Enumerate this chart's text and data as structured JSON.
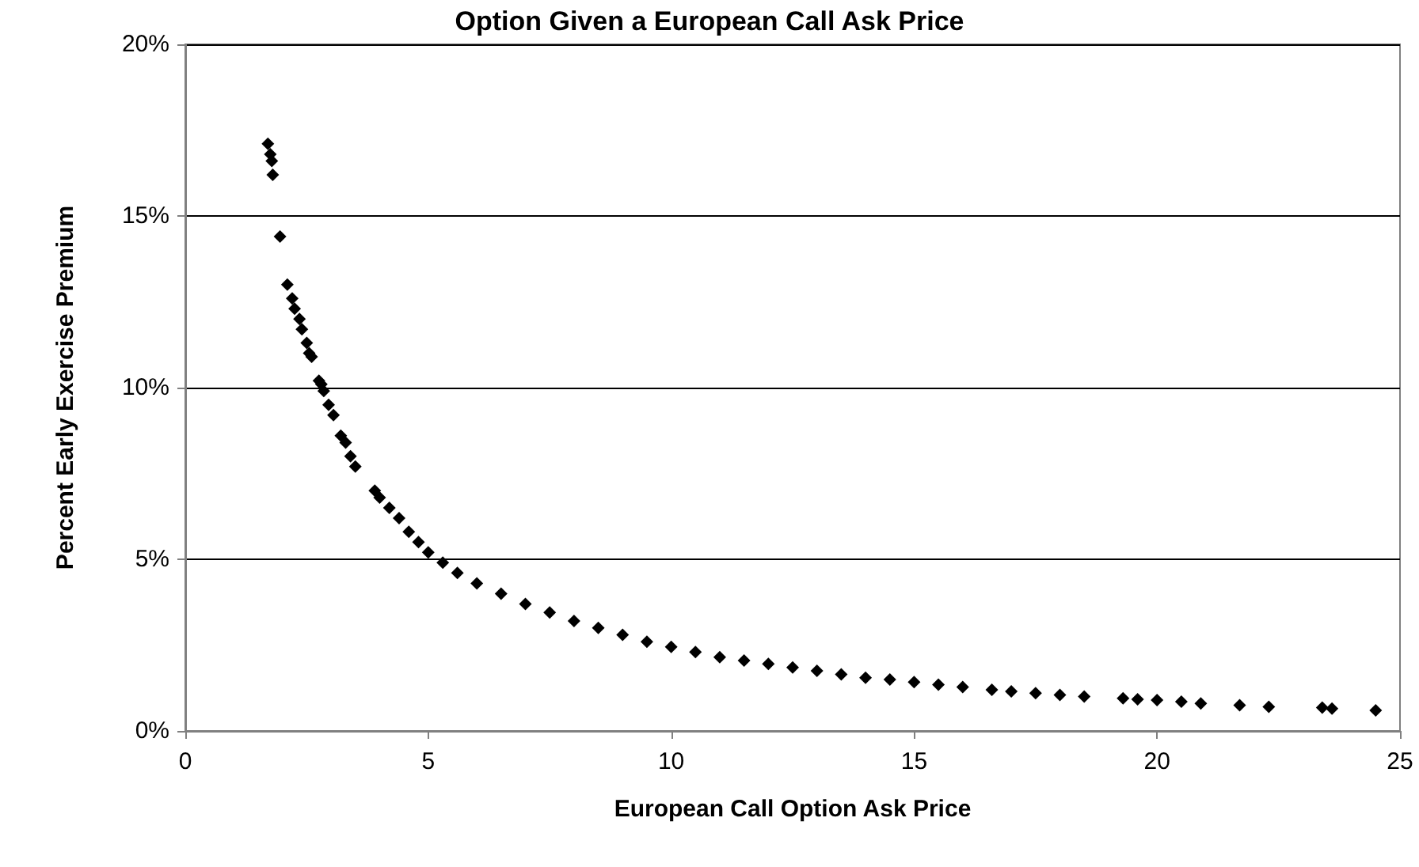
{
  "chart_data": {
    "type": "scatter",
    "title": "Option Given a European Call Ask Price",
    "xlabel": "European Call Option Ask Price",
    "ylabel": "Percent Early Exercise Premium",
    "x": [
      1.7,
      1.75,
      1.78,
      1.8,
      1.95,
      2.1,
      2.2,
      2.25,
      2.35,
      2.4,
      2.5,
      2.55,
      2.6,
      2.75,
      2.8,
      2.85,
      2.95,
      3.05,
      3.2,
      3.3,
      3.4,
      3.5,
      3.9,
      4.0,
      4.2,
      4.4,
      4.6,
      4.8,
      5.0,
      5.3,
      5.6,
      6.0,
      6.5,
      7.0,
      7.5,
      8.0,
      8.5,
      9.0,
      9.5,
      10.0,
      10.5,
      11.0,
      11.5,
      12.0,
      12.5,
      13.0,
      13.5,
      14.0,
      14.5,
      15.0,
      15.5,
      16.0,
      16.6,
      17.0,
      17.5,
      18.0,
      18.5,
      19.3,
      19.6,
      20.0,
      20.5,
      20.9,
      21.7,
      22.3,
      23.4,
      23.6,
      24.5
    ],
    "series": [
      {
        "color": "#000000",
        "values": [
          17.1,
          16.8,
          16.6,
          16.2,
          14.4,
          13.0,
          12.6,
          12.3,
          12.0,
          11.7,
          11.3,
          11.0,
          10.9,
          10.2,
          10.1,
          9.9,
          9.5,
          9.2,
          8.6,
          8.4,
          8.0,
          7.7,
          7.0,
          6.8,
          6.5,
          6.2,
          5.8,
          5.5,
          5.2,
          4.9,
          4.6,
          4.3,
          4.0,
          3.7,
          3.45,
          3.2,
          3.0,
          2.8,
          2.6,
          2.45,
          2.3,
          2.15,
          2.05,
          1.95,
          1.85,
          1.75,
          1.65,
          1.55,
          1.5,
          1.42,
          1.35,
          1.28,
          1.2,
          1.15,
          1.1,
          1.05,
          1.0,
          0.95,
          0.92,
          0.9,
          0.85,
          0.8,
          0.75,
          0.7,
          0.68,
          0.65,
          0.6
        ]
      }
    ],
    "xlim": [
      0,
      25
    ],
    "xticks": [
      0,
      5,
      10,
      15,
      20,
      25
    ],
    "ylim": [
      0,
      20
    ],
    "yticks": [
      {
        "value": 0,
        "label": "0%"
      },
      {
        "value": 5,
        "label": "5%"
      },
      {
        "value": 10,
        "label": "10%"
      },
      {
        "value": 15,
        "label": "15%"
      },
      {
        "value": 20,
        "label": "20%"
      }
    ],
    "grid": "y",
    "marker": "diamond"
  }
}
